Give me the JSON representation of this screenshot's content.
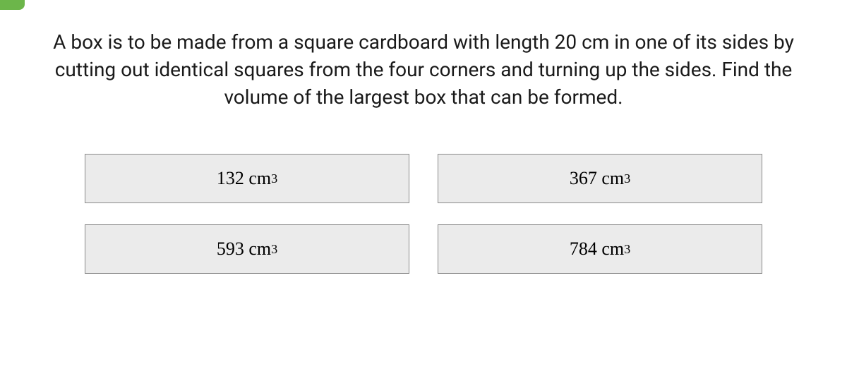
{
  "question": {
    "text": "A box is to be made from a square cardboard with length 20 cm in one of its sides by cutting out identical squares from the four corners and turning up the sides. Find the volume of the largest box that can be formed.",
    "font_size": 28,
    "color": "#1a1a1a"
  },
  "options": [
    {
      "value": "132",
      "unit": "cm",
      "exponent": "3"
    },
    {
      "value": "367",
      "unit": "cm",
      "exponent": "3"
    },
    {
      "value": "593",
      "unit": "cm",
      "exponent": "3"
    },
    {
      "value": "784",
      "unit": "cm",
      "exponent": "3"
    }
  ],
  "styling": {
    "option_bg": "#ebebeb",
    "option_border": "#8a8a8a",
    "option_font_family": "Times New Roman",
    "option_font_size": 26,
    "accent_color": "#6cb64a",
    "background_color": "#ffffff"
  }
}
